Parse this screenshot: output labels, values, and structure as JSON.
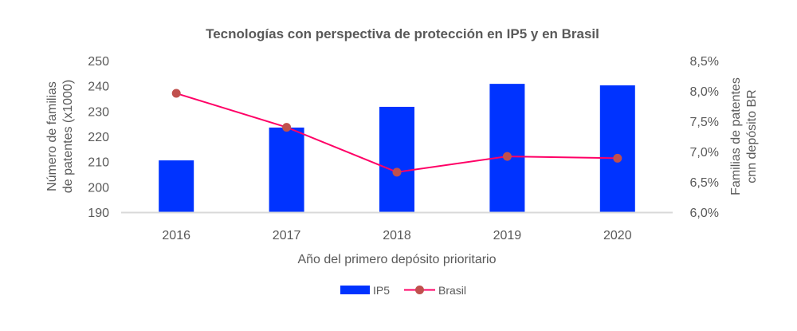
{
  "chart_data": {
    "type": "bar",
    "title": "Tecnologías con perspectiva de protección en IP5 y en Brasil",
    "xlabel": "Año del primero depósito prioritario",
    "ylabel_lines": [
      "Número de familias",
      "de patentes (x1000)"
    ],
    "y2label_lines": [
      "Familias de patentes",
      "cnn depósito BR"
    ],
    "categories": [
      "2016",
      "2017",
      "2018",
      "2019",
      "2020"
    ],
    "ylim": [
      190,
      250
    ],
    "y_ticks": [
      190,
      200,
      210,
      220,
      230,
      240,
      250
    ],
    "y_tick_labels": [
      "190",
      "200",
      "210",
      "220",
      "230",
      "240",
      "250"
    ],
    "y2lim": [
      6.0,
      8.5
    ],
    "y2_ticks": [
      6.0,
      6.5,
      7.0,
      7.5,
      8.0,
      8.5
    ],
    "y2_tick_labels": [
      "6,0%",
      "6,5%",
      "7,0%",
      "7,5%",
      "8,0%",
      "8,5%"
    ],
    "grid": false,
    "legend_position": "bottom",
    "series": [
      {
        "name": "IP5",
        "type": "bar",
        "axis": "left",
        "color": "#0033FF",
        "values": [
          210.5,
          223.5,
          231.7,
          240.8,
          240.2
        ]
      },
      {
        "name": "Brasil",
        "type": "line",
        "axis": "right",
        "color": "#FF0066",
        "marker_color": "#C0504D",
        "values": [
          7.96,
          7.4,
          6.66,
          6.92,
          6.89
        ]
      }
    ]
  }
}
